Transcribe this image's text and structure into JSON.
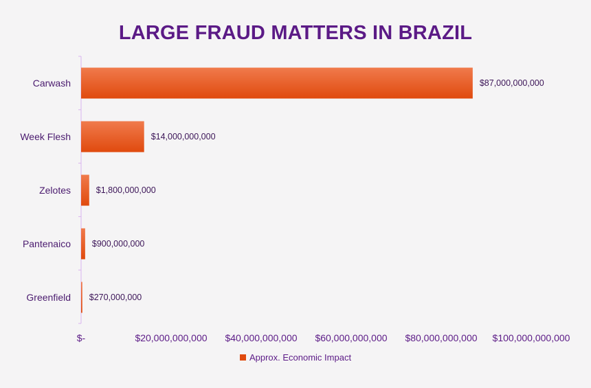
{
  "colors": {
    "bar_top": "#f07a4c",
    "bar_bottom": "#e04a0e",
    "axis_line": "#d9b3ee",
    "title": "#5b1a86"
  },
  "chart_data": {
    "type": "bar",
    "orientation": "horizontal",
    "title": "LARGE FRAUD MATTERS IN BRAZIL",
    "categories": [
      "Carwash",
      "Week Flesh",
      "Zelotes",
      "Pantenaico",
      "Greenfield"
    ],
    "series": [
      {
        "name": "Approx. Economic Impact",
        "values": [
          87000000000,
          14000000000,
          1800000000,
          900000000,
          270000000
        ],
        "data_labels": [
          "$87,000,000,000",
          "$14,000,000,000",
          "$1,800,000,000",
          "$900,000,000",
          "$270,000,000"
        ]
      }
    ],
    "xlim": [
      0,
      100000000000
    ],
    "x_ticks": [
      0,
      20000000000,
      40000000000,
      60000000000,
      80000000000,
      100000000000
    ],
    "x_tick_labels": [
      "$-",
      "$20,000,000,000",
      "$40,000,000,000",
      "$60,000,000,000",
      "$80,000,000,000",
      "$100,000,000,000"
    ],
    "grid": false,
    "legend_position": "bottom-center"
  }
}
